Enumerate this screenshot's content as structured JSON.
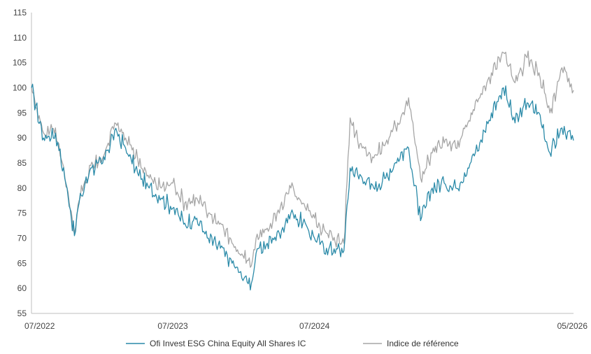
{
  "chart_data": {
    "type": "line",
    "title": "",
    "xlabel": "",
    "ylabel": "",
    "ylim": [
      55,
      115
    ],
    "y_ticks": [
      55,
      60,
      65,
      70,
      75,
      80,
      85,
      90,
      95,
      100,
      105,
      110,
      115
    ],
    "x_range": [
      "2022-07",
      "2026-05"
    ],
    "x_ticks": [
      {
        "date": "2022-07",
        "label": "07/2022"
      },
      {
        "date": "2023-07",
        "label": "07/2023"
      },
      {
        "date": "2024-07",
        "label": "07/2024"
      },
      {
        "date": "2026-05",
        "label": "05/2026"
      }
    ],
    "grid": false,
    "legend_position": "bottom",
    "series": [
      {
        "name": "Ofi Invest ESG China Equity All Shares IC",
        "color": "#2a8aa8",
        "points": [
          [
            "2022-07",
            100
          ],
          [
            "2022-08",
            90
          ],
          [
            "2022-09",
            91
          ],
          [
            "2022-10",
            80
          ],
          [
            "2022-10-20",
            70.5
          ],
          [
            "2022-11",
            77
          ],
          [
            "2022-12",
            84
          ],
          [
            "2023-01",
            85
          ],
          [
            "2023-02",
            91.5
          ],
          [
            "2023-03",
            88
          ],
          [
            "2023-04",
            83
          ],
          [
            "2023-05",
            80
          ],
          [
            "2023-06",
            78
          ],
          [
            "2023-07",
            76
          ],
          [
            "2023-08",
            73
          ],
          [
            "2023-09",
            74
          ],
          [
            "2023-10",
            70
          ],
          [
            "2023-11",
            68
          ],
          [
            "2023-12",
            65
          ],
          [
            "2024-01",
            62
          ],
          [
            "2024-01-20",
            61
          ],
          [
            "2024-02",
            67
          ],
          [
            "2024-03",
            69
          ],
          [
            "2024-04",
            71
          ],
          [
            "2024-05",
            75
          ],
          [
            "2024-06",
            73
          ],
          [
            "2024-07",
            70
          ],
          [
            "2024-08",
            68
          ],
          [
            "2024-09-15",
            67.5
          ],
          [
            "2024-10",
            84
          ],
          [
            "2024-11",
            82
          ],
          [
            "2024-12",
            80
          ],
          [
            "2025-01",
            82
          ],
          [
            "2025-02",
            86
          ],
          [
            "2025-03",
            88
          ],
          [
            "2025-04",
            73.5
          ],
          [
            "2025-05",
            80
          ],
          [
            "2025-06",
            81
          ],
          [
            "2025-07",
            80
          ],
          [
            "2025-08",
            84
          ],
          [
            "2025-09",
            89
          ],
          [
            "2025-10",
            95
          ],
          [
            "2025-11",
            100
          ],
          [
            "2025-12",
            93
          ],
          [
            "2026-01",
            97
          ],
          [
            "2026-02",
            95
          ],
          [
            "2026-03",
            87
          ],
          [
            "2026-04",
            92
          ],
          [
            "2026-05",
            89.5
          ]
        ]
      },
      {
        "name": "Indice de référence",
        "color": "#a6a6a6",
        "points": [
          [
            "2022-07",
            100
          ],
          [
            "2022-08",
            91
          ],
          [
            "2022-09",
            92
          ],
          [
            "2022-10",
            80
          ],
          [
            "2022-10-20",
            71
          ],
          [
            "2022-11",
            77.5
          ],
          [
            "2022-12",
            84.5
          ],
          [
            "2023-01",
            86
          ],
          [
            "2023-02",
            93
          ],
          [
            "2023-03",
            90
          ],
          [
            "2023-04",
            86
          ],
          [
            "2023-05",
            82
          ],
          [
            "2023-06",
            80
          ],
          [
            "2023-07",
            81
          ],
          [
            "2023-08",
            77
          ],
          [
            "2023-09",
            78
          ],
          [
            "2023-10",
            75
          ],
          [
            "2023-11",
            73
          ],
          [
            "2023-12",
            69
          ],
          [
            "2024-01",
            66
          ],
          [
            "2024-01-20",
            64.5
          ],
          [
            "2024-02",
            70
          ],
          [
            "2024-03",
            72
          ],
          [
            "2024-04",
            75
          ],
          [
            "2024-05",
            80
          ],
          [
            "2024-06",
            77
          ],
          [
            "2024-07",
            74
          ],
          [
            "2024-08",
            71
          ],
          [
            "2024-09-15",
            69
          ],
          [
            "2024-10",
            94
          ],
          [
            "2024-11",
            88
          ],
          [
            "2024-12",
            86
          ],
          [
            "2025-01",
            89
          ],
          [
            "2025-02",
            93
          ],
          [
            "2025-03",
            98
          ],
          [
            "2025-04",
            82
          ],
          [
            "2025-05",
            87
          ],
          [
            "2025-06",
            89
          ],
          [
            "2025-07",
            88
          ],
          [
            "2025-08",
            93
          ],
          [
            "2025-09",
            98
          ],
          [
            "2025-10",
            103
          ],
          [
            "2025-11",
            107
          ],
          [
            "2025-12",
            101
          ],
          [
            "2026-01",
            106
          ],
          [
            "2026-02",
            103
          ],
          [
            "2026-03",
            95
          ],
          [
            "2026-04",
            104
          ],
          [
            "2026-05",
            99.5
          ]
        ]
      }
    ]
  }
}
